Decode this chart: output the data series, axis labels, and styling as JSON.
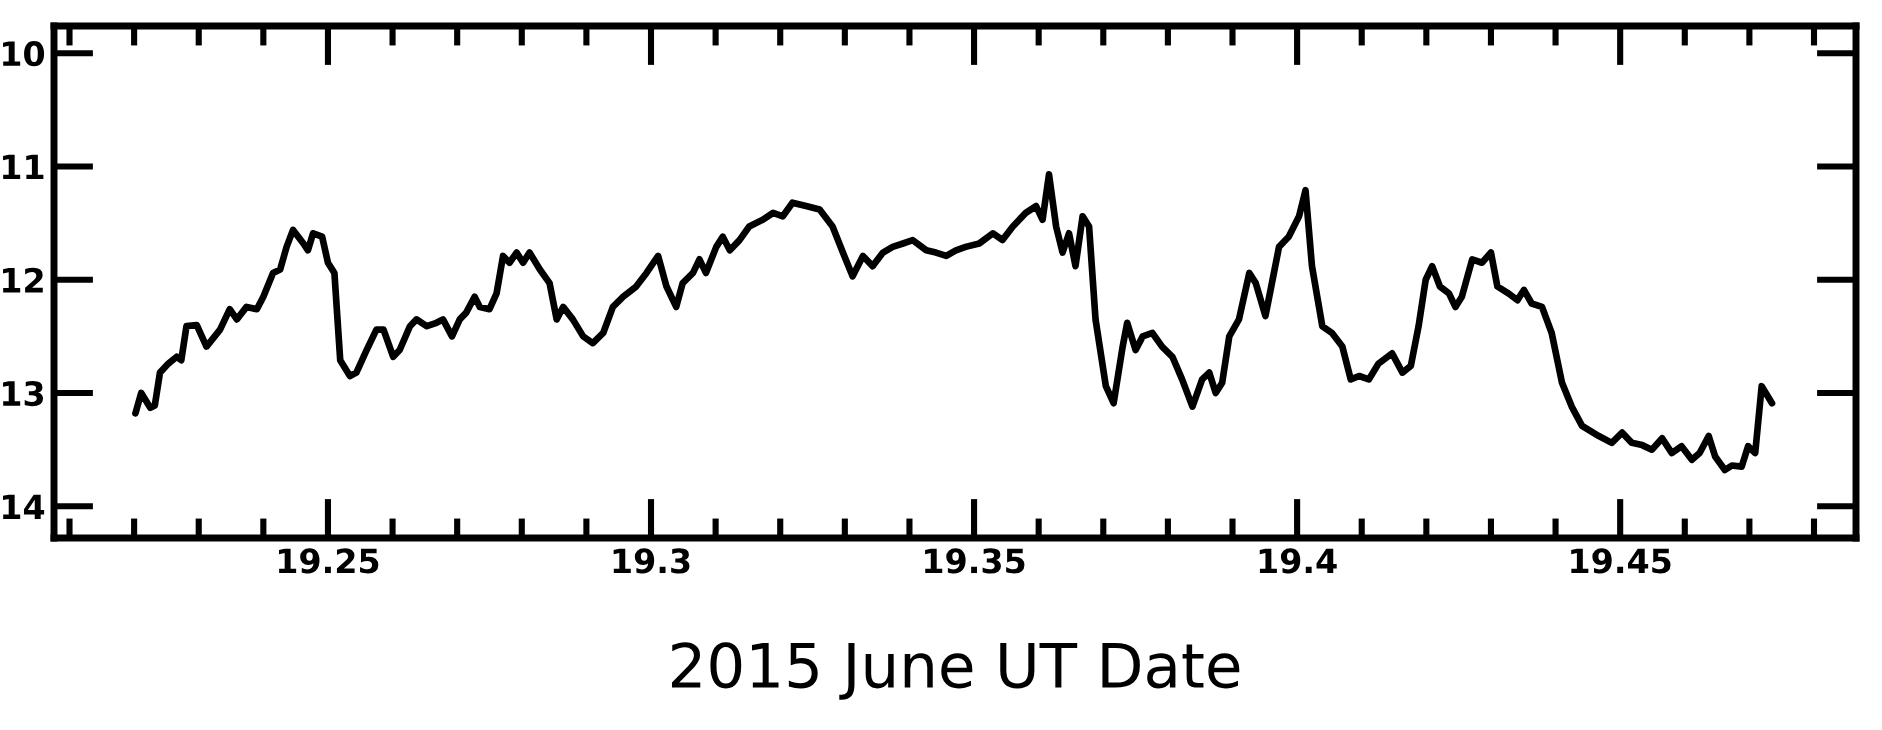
{
  "chart_data": {
    "type": "line",
    "xlabel": "2015 June UT Date",
    "x": [
      19.2202,
      19.2211,
      19.2225,
      19.2232,
      19.224,
      19.2253,
      19.2266,
      19.2273,
      19.2281,
      19.2297,
      19.2312,
      19.2333,
      19.2348,
      19.2359,
      19.2374,
      19.239,
      19.24,
      19.2415,
      19.2426,
      19.2436,
      19.2446,
      19.2462,
      19.2469,
      19.2477,
      19.2491,
      19.25,
      19.251,
      19.2519,
      19.2534,
      19.2544,
      19.256,
      19.2575,
      19.2586,
      19.2601,
      19.2611,
      19.2627,
      19.2637,
      19.2653,
      19.2668,
      19.2678,
      19.2692,
      19.2704,
      19.2714,
      19.2727,
      19.2735,
      19.275,
      19.2761,
      19.2771,
      19.2781,
      19.2792,
      19.2802,
      19.2812,
      19.2828,
      19.2843,
      19.2854,
      19.2864,
      19.2879,
      19.2895,
      19.291,
      19.2926,
      19.2941,
      19.2957,
      19.2977,
      19.2993,
      19.3011,
      19.3024,
      19.3039,
      19.3049,
      19.3065,
      19.3075,
      19.3085,
      19.3101,
      19.3111,
      19.3122,
      19.3137,
      19.3152,
      19.3173,
      19.3189,
      19.3204,
      19.3219,
      19.324,
      19.3261,
      19.3281,
      19.3297,
      19.3312,
      19.3328,
      19.3343,
      19.3359,
      19.3374,
      19.339,
      19.3405,
      19.3426,
      19.3441,
      19.3457,
      19.3472,
      19.3487,
      19.3508,
      19.3529,
      19.3544,
      19.356,
      19.358,
      19.3596,
      19.3606,
      19.3616,
      19.3627,
      19.3637,
      19.3647,
      19.3657,
      19.3668,
      19.3678,
      19.3688,
      19.3704,
      19.3716,
      19.373,
      19.3737,
      19.375,
      19.3761,
      19.3776,
      19.3791,
      19.3807,
      19.3822,
      19.3838,
      19.3853,
      19.3864,
      19.3874,
      19.3884,
      19.3895,
      19.391,
      19.3926,
      19.3936,
      19.3951,
      19.3962,
      19.3972,
      19.3987,
      19.4003,
      19.4013,
      19.4023,
      19.4039,
      19.4054,
      19.407,
      19.4083,
      19.4096,
      19.4111,
      19.4126,
      19.4147,
      19.4163,
      19.4176,
      19.4188,
      19.4199,
      19.4209,
      19.4221,
      19.4235,
      19.4245,
      19.4255,
      19.4271,
      19.4286,
      19.43,
      19.431,
      19.4327,
      19.4341,
      19.4351,
      19.4363,
      19.4379,
      19.4394,
      19.441,
      19.4425,
      19.4441,
      19.4467,
      19.4487,
      19.4503,
      19.4518,
      19.4534,
      19.4549,
      19.4565,
      19.458,
      19.4595,
      19.4611,
      19.4623,
      19.4637,
      19.4647,
      19.4662,
      19.4673,
      19.4688,
      19.4698,
      19.4709,
      19.4719,
      19.4735
    ],
    "series": [
      {
        "color": "#000000",
        "values": [
          13.18,
          13.0,
          13.13,
          13.11,
          12.82,
          12.74,
          12.68,
          12.71,
          12.41,
          12.4,
          12.59,
          12.44,
          12.26,
          12.35,
          12.24,
          12.26,
          12.15,
          11.94,
          11.91,
          11.71,
          11.56,
          11.68,
          11.74,
          11.59,
          11.62,
          11.85,
          11.94,
          12.71,
          12.85,
          12.82,
          12.62,
          12.44,
          12.44,
          12.68,
          12.62,
          12.41,
          12.35,
          12.41,
          12.38,
          12.35,
          12.5,
          12.35,
          12.29,
          12.15,
          12.24,
          12.26,
          12.12,
          11.79,
          11.85,
          11.76,
          11.85,
          11.76,
          11.91,
          12.03,
          12.35,
          12.24,
          12.35,
          12.5,
          12.56,
          12.47,
          12.24,
          12.15,
          12.06,
          11.94,
          11.79,
          12.06,
          12.24,
          12.03,
          11.94,
          11.82,
          11.94,
          11.71,
          11.62,
          11.74,
          11.65,
          11.53,
          11.47,
          11.41,
          11.44,
          11.32,
          11.35,
          11.38,
          11.53,
          11.76,
          11.97,
          11.79,
          11.88,
          11.76,
          11.71,
          11.68,
          11.65,
          11.74,
          11.76,
          11.79,
          11.74,
          11.71,
          11.68,
          11.59,
          11.65,
          11.53,
          11.41,
          11.35,
          11.47,
          11.07,
          11.53,
          11.76,
          11.59,
          11.88,
          11.44,
          11.53,
          12.35,
          12.94,
          13.09,
          12.59,
          12.38,
          12.62,
          12.5,
          12.47,
          12.59,
          12.68,
          12.88,
          13.12,
          12.88,
          12.82,
          13.0,
          12.91,
          12.5,
          12.35,
          11.94,
          12.03,
          12.32,
          12.0,
          11.71,
          11.62,
          11.44,
          11.21,
          11.88,
          12.41,
          12.47,
          12.59,
          12.88,
          12.85,
          12.88,
          12.74,
          12.65,
          12.82,
          12.76,
          12.41,
          12.0,
          11.88,
          12.06,
          12.12,
          12.24,
          12.15,
          11.82,
          11.85,
          11.76,
          12.06,
          12.12,
          12.18,
          12.09,
          12.21,
          12.24,
          12.47,
          12.91,
          13.12,
          13.29,
          13.38,
          13.44,
          13.35,
          13.44,
          13.46,
          13.5,
          13.4,
          13.53,
          13.47,
          13.59,
          13.53,
          13.38,
          13.56,
          13.68,
          13.64,
          13.65,
          13.47,
          13.53,
          12.94,
          13.09
        ]
      }
    ],
    "xlim": [
      19.2076,
      19.4865
    ],
    "xticks": [
      19.25,
      19.3,
      19.35,
      19.4,
      19.45
    ],
    "ylim": [
      14.28,
      9.76
    ],
    "yticks": [
      10,
      11,
      12,
      13,
      14
    ],
    "grid": false,
    "legend": false,
    "marker": "none",
    "line_style": "solid"
  }
}
